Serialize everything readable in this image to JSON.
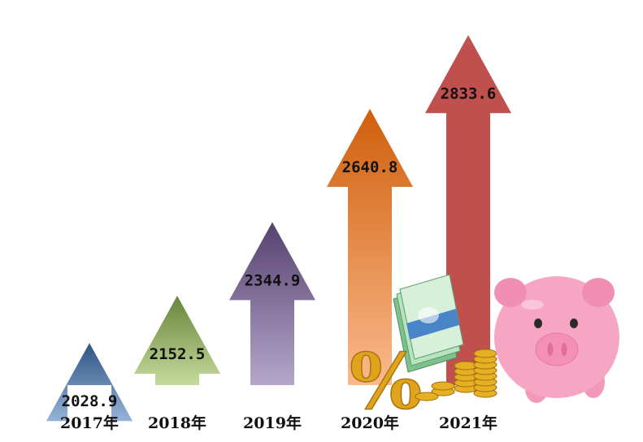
{
  "chart_data": {
    "type": "bar",
    "categories": [
      "2017年",
      "2018年",
      "2019年",
      "2020年",
      "2021年"
    ],
    "values": [
      2028.9,
      2152.5,
      2344.9,
      2640.8,
      2833.6
    ],
    "value_labels": [
      "2028.9",
      "2152.5",
      "2344.9",
      "2640.8",
      "2833.6"
    ],
    "title": "",
    "xlabel": "",
    "ylabel": "",
    "ylim": [
      1800,
      2900
    ],
    "grid": false,
    "legend": "none",
    "colors": [
      {
        "top": "#2f5585",
        "bottom": "#95b3d7"
      },
      {
        "top": "#66853a",
        "bottom": "#c6da9d"
      },
      {
        "top": "#57416f",
        "bottom": "#b4a7ca"
      },
      {
        "top": "#cf5f0c",
        "bottom": "#fbb98c"
      },
      {
        "top": "#c0504d",
        "bottom": "#c0504d"
      }
    ]
  },
  "decorations": {
    "percent_sign": "%",
    "icons": [
      "money-stack-icon",
      "gold-coins-icon",
      "piggy-bank-icon"
    ],
    "colors": {
      "gold": "#e6b022",
      "cash": "#9fd8a8",
      "pig": "#f6a6c3"
    }
  }
}
